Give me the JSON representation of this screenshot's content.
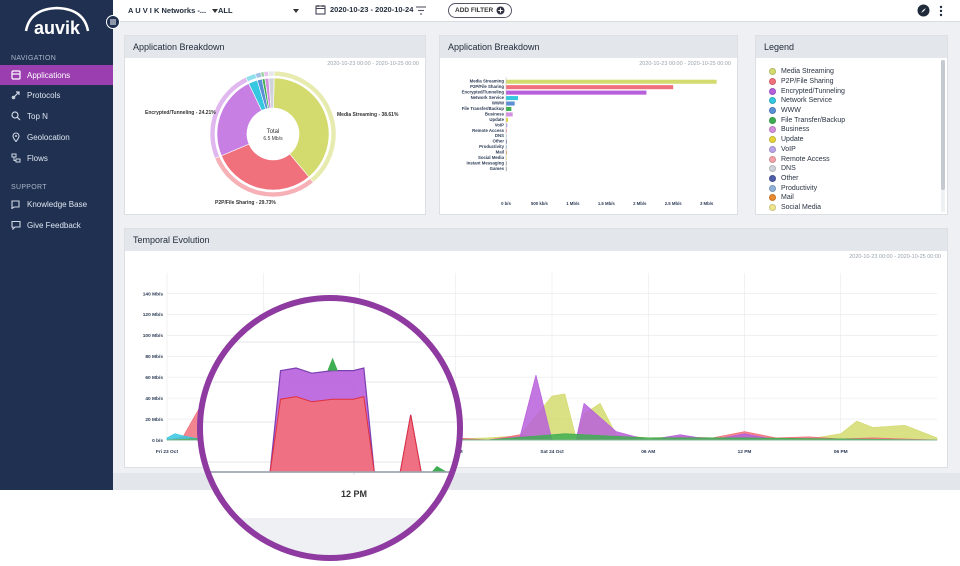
{
  "brand": {
    "logo_text": "auvik"
  },
  "sidebar": {
    "navigation_heading": "NAVIGATION",
    "items": [
      {
        "label": "Applications",
        "icon": "applications-icon",
        "active": true
      },
      {
        "label": "Protocols",
        "icon": "protocols-icon",
        "active": false
      },
      {
        "label": "Top N",
        "icon": "top-n-icon",
        "active": false
      },
      {
        "label": "Geolocation",
        "icon": "geolocation-icon",
        "active": false
      },
      {
        "label": "Flows",
        "icon": "flows-icon",
        "active": false
      }
    ],
    "support_heading": "SUPPORT",
    "support_items": [
      {
        "label": "Knowledge Base",
        "icon": "knowledge-base-icon"
      },
      {
        "label": "Give Feedback",
        "icon": "feedback-icon"
      }
    ]
  },
  "header": {
    "network": "A U V I K Networks -...",
    "device": "ALL",
    "date_range": "2020-10-23 - 2020-10-24",
    "add_filter": "ADD FILTER"
  },
  "colors": {
    "accent": "#9b3fb0",
    "sidebar_bg": "#1f3050"
  },
  "pie_panel": {
    "title": "Application Breakdown",
    "range": "2020-10-23 00:00 - 2020-10-25 00:00",
    "center_label": "Total",
    "center_value": "6.5 Mb/s",
    "labels": {
      "encrypted": "Encrypted/Tunneling - 24.21%",
      "media": "Media Streaming - 38.61%",
      "p2p": "P2P/File Sharing - 29.73%"
    }
  },
  "bar_panel": {
    "title": "Application Breakdown",
    "range": "2020-10-23 00:00 - 2020-10-25 00:00"
  },
  "legend_panel": {
    "title": "Legend",
    "items": [
      {
        "label": "Media Streaming",
        "color": "#d4db6e"
      },
      {
        "label": "P2P/File Sharing",
        "color": "#f0707c"
      },
      {
        "label": "Encrypted/Tunneling",
        "color": "#b85fdc"
      },
      {
        "label": "Network Service",
        "color": "#35c8e0"
      },
      {
        "label": "WWW",
        "color": "#5b8fd6"
      },
      {
        "label": "File Transfer/Backup",
        "color": "#3fae52"
      },
      {
        "label": "Business",
        "color": "#d58fe0"
      },
      {
        "label": "Update",
        "color": "#e6d43a"
      },
      {
        "label": "VoIP",
        "color": "#b9a6ea"
      },
      {
        "label": "Remote Access",
        "color": "#f5a3a8"
      },
      {
        "label": "DNS",
        "color": "#d0d4da"
      },
      {
        "label": "Other",
        "color": "#4f5fa8"
      },
      {
        "label": "Productivity",
        "color": "#8fb2d9"
      },
      {
        "label": "Mail",
        "color": "#e9892f"
      },
      {
        "label": "Social Media",
        "color": "#f0e58f"
      }
    ]
  },
  "temporal_panel": {
    "title": "Temporal Evolution",
    "range": "2020-10-23 00:00 - 2020-10-25 00:00",
    "zoom_label": "12 PM"
  },
  "chart_data": [
    {
      "type": "pie",
      "title": "Application Breakdown",
      "center": "Total 6.5 Mb/s",
      "slices": [
        {
          "label": "Media Streaming",
          "value": 38.61,
          "color": "#d4db6e"
        },
        {
          "label": "P2P/File Sharing",
          "value": 29.73,
          "color": "#f0707c"
        },
        {
          "label": "Encrypted/Tunneling",
          "value": 24.21,
          "color": "#c77fe3"
        },
        {
          "label": "Network Service",
          "value": 2.6,
          "color": "#35c8e0"
        },
        {
          "label": "WWW",
          "value": 1.4,
          "color": "#5b8fd6"
        },
        {
          "label": "File Transfer/Backup",
          "value": 0.8,
          "color": "#3fae52"
        },
        {
          "label": "Business",
          "value": 1.1,
          "color": "#d58fe0"
        },
        {
          "label": "Other",
          "value": 1.55,
          "color": "#d0d4da"
        }
      ]
    },
    {
      "type": "bar",
      "orientation": "horizontal",
      "title": "Application Breakdown",
      "categories": [
        "Media Streaming",
        "P2P/File Sharing",
        "Encrypted/Tunneling",
        "Network Service",
        "WWW",
        "File Transfer/Backup",
        "Business",
        "Update",
        "VoIP",
        "Remote Access",
        "DNS",
        "Other",
        "Productivity",
        "Mail",
        "Social Media",
        "Instant Messaging",
        "Games"
      ],
      "values": [
        3.15,
        2.5,
        2.1,
        0.18,
        0.13,
        0.08,
        0.1,
        0.03,
        0.02,
        0.015,
        0.01,
        0.008,
        0.006,
        0.005,
        0.004,
        0.003,
        0.002
      ],
      "colors": [
        "#d4db6e",
        "#f0707c",
        "#b85fdc",
        "#35c8e0",
        "#5b8fd6",
        "#3fae52",
        "#d58fe0",
        "#e6d43a",
        "#b9a6ea",
        "#f5a3a8",
        "#d0d4da",
        "#4f5fa8",
        "#8fb2d9",
        "#e9892f",
        "#f0e58f",
        "#999999",
        "#999999"
      ],
      "xticks": [
        "0 b/s",
        "500 kb/s",
        "1 Mb/s",
        "1.5 Mb/s",
        "2 Mb/s",
        "2.5 Mb/s",
        "3 Mb/s"
      ],
      "xlim": [
        0,
        3.2
      ]
    },
    {
      "type": "area",
      "title": "Temporal Evolution",
      "ylabel": "",
      "yticks": [
        "0 b/s",
        "20 Mb/s",
        "40 Mb/s",
        "60 Mb/s",
        "80 Mb/s",
        "100 Mb/s",
        "120 Mb/s",
        "140 Mb/s"
      ],
      "ylim": [
        0,
        150
      ],
      "xticks": [
        "Fri 23 Oct",
        "06 AM",
        "12 PM",
        "06 PM",
        "Sat 24 Oct",
        "06 AM",
        "12 PM",
        "06 PM"
      ],
      "xlim": [
        0,
        48
      ],
      "series": [
        {
          "name": "Media Streaming",
          "color": "#d4db6e",
          "x": [
            0,
            2,
            4,
            6,
            8,
            10,
            12,
            14,
            16,
            18,
            20,
            22,
            24,
            24.8,
            25.5,
            26,
            27,
            28,
            30,
            32,
            34,
            36,
            38,
            40,
            42,
            43,
            44,
            46,
            48
          ],
          "y": [
            1,
            1,
            0.5,
            1,
            1,
            1,
            1,
            0.5,
            1,
            1,
            2,
            4,
            42,
            44,
            2,
            25,
            35,
            5,
            2,
            3,
            1,
            2,
            2,
            1,
            6,
            18,
            12,
            14,
            2
          ]
        },
        {
          "name": "P2P/File Sharing",
          "color": "#f0707c",
          "x": [
            0,
            1,
            2,
            4,
            5,
            6,
            7,
            8,
            10,
            12,
            14,
            16,
            18,
            20,
            22,
            24,
            26,
            28,
            30,
            32,
            34,
            36,
            38,
            40,
            42,
            44,
            46,
            48
          ],
          "y": [
            0,
            3,
            30,
            0,
            28,
            28,
            0,
            24,
            0,
            0,
            3,
            0,
            2,
            0,
            5,
            0,
            0,
            4,
            0,
            3,
            2,
            8,
            2,
            3,
            1,
            2,
            1,
            0
          ]
        },
        {
          "name": "Encrypted/Tunneling",
          "color": "#b85fdc",
          "x": [
            0,
            2,
            4,
            5,
            6,
            7,
            8,
            10,
            12,
            14,
            16,
            18,
            20,
            22,
            23,
            24,
            24.8,
            25.5,
            26,
            28,
            30,
            32,
            34,
            36,
            38,
            40,
            42,
            44,
            46,
            48
          ],
          "y": [
            0,
            0,
            0,
            35,
            36,
            0,
            0,
            0,
            0,
            0,
            4,
            0,
            0,
            3,
            62,
            0,
            0,
            0,
            35,
            8,
            0,
            5,
            0,
            6,
            0,
            0,
            0,
            0,
            0,
            0
          ]
        },
        {
          "name": "Network Service",
          "color": "#35c8e0",
          "x": [
            0,
            0.5,
            1,
            2,
            3,
            48
          ],
          "y": [
            2,
            6,
            4,
            1,
            0,
            0
          ]
        },
        {
          "name": "File Transfer/Backup",
          "color": "#3fae52",
          "x": [
            0,
            6,
            7,
            12,
            20,
            24.8,
            30,
            36,
            48
          ],
          "y": [
            0,
            4,
            0,
            2,
            0,
            6,
            2,
            2,
            0
          ]
        }
      ]
    }
  ]
}
